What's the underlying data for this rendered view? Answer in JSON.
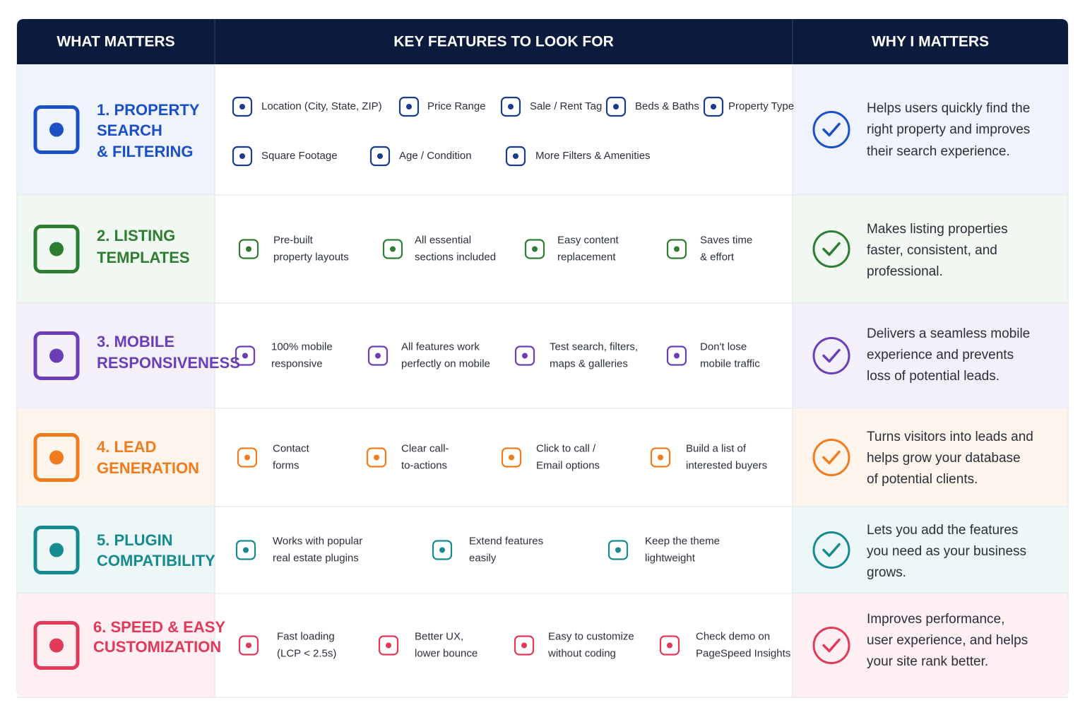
{
  "header": {
    "columns": [
      "WHAT MATTERS",
      "KEY FEATURES TO LOOK FOR",
      "WHY I MATTERS"
    ]
  },
  "rows": [
    {
      "title": [
        "1. PROPERTY",
        "SEARCH",
        "& FILTERING"
      ],
      "features": [
        {
          "label": [
            "Location (City, State, ZIP)"
          ]
        },
        {
          "label": [
            "Price Range"
          ]
        },
        {
          "label": [
            "Sale / Rent Tag"
          ]
        },
        {
          "label": [
            "Beds & Baths"
          ]
        },
        {
          "label": [
            "Property Type"
          ]
        },
        {
          "label": [
            "Square Footage"
          ]
        },
        {
          "label": [
            "Age / Condition"
          ]
        },
        {
          "label": [
            "More Filters & Amenities"
          ]
        }
      ],
      "why": [
        "Helps users quickly find the",
        "right property and improves",
        "their search experience."
      ]
    },
    {
      "title": [
        "2. LISTING",
        "TEMPLATES"
      ],
      "features": [
        {
          "label": [
            "Pre-built",
            "property layouts"
          ]
        },
        {
          "label": [
            "All essential",
            "sections included"
          ]
        },
        {
          "label": [
            "Easy content",
            "replacement"
          ]
        },
        {
          "label": [
            "Saves time",
            "& effort"
          ]
        }
      ],
      "why": [
        "Makes listing properties",
        "faster, consistent, and",
        "professional."
      ]
    },
    {
      "title": [
        "3. MOBILE",
        "RESPONSIVENESS"
      ],
      "features": [
        {
          "label": [
            "100% mobile",
            "responsive"
          ]
        },
        {
          "label": [
            "All features work",
            "perfectly on mobile"
          ]
        },
        {
          "label": [
            "Test search, filters,",
            "maps & galleries"
          ]
        },
        {
          "label": [
            "Don't lose",
            "mobile traffic"
          ]
        }
      ],
      "why": [
        "Delivers a seamless mobile",
        "experience and prevents",
        "loss of potential leads."
      ]
    },
    {
      "title": [
        "4. LEAD",
        "GENERATION"
      ],
      "features": [
        {
          "label": [
            "Contact",
            "forms"
          ]
        },
        {
          "label": [
            "Clear call-",
            "to-actions"
          ]
        },
        {
          "label": [
            "Click to call /",
            "Email options"
          ]
        },
        {
          "label": [
            "Build a list of",
            "interested buyers"
          ]
        }
      ],
      "why": [
        "Turns visitors into leads and",
        "helps grow your database",
        "of potential clients."
      ]
    },
    {
      "title": [
        "5. PLUGIN",
        "COMPATIBILITY"
      ],
      "features": [
        {
          "label": [
            "Works with popular",
            "real estate plugins"
          ]
        },
        {
          "label": [
            "Extend features",
            "easily"
          ]
        },
        {
          "label": [
            "Keep the theme",
            "lightweight"
          ]
        }
      ],
      "why": [
        "Lets you add the features",
        "you need as your business",
        "grows."
      ]
    },
    {
      "title": [
        "6. SPEED & EASY",
        "CUSTOMIZATION"
      ],
      "features": [
        {
          "label": [
            "Fast loading",
            "(LCP < 2.5s)"
          ]
        },
        {
          "label": [
            "Better UX,",
            "lower bounce"
          ]
        },
        {
          "label": [
            "Easy to customize",
            "without coding"
          ]
        },
        {
          "label": [
            "Check demo on",
            "PageSpeed Insights"
          ]
        }
      ],
      "why": [
        "Improves performance,",
        "user experience, and helps",
        "your site rank better."
      ]
    }
  ]
}
